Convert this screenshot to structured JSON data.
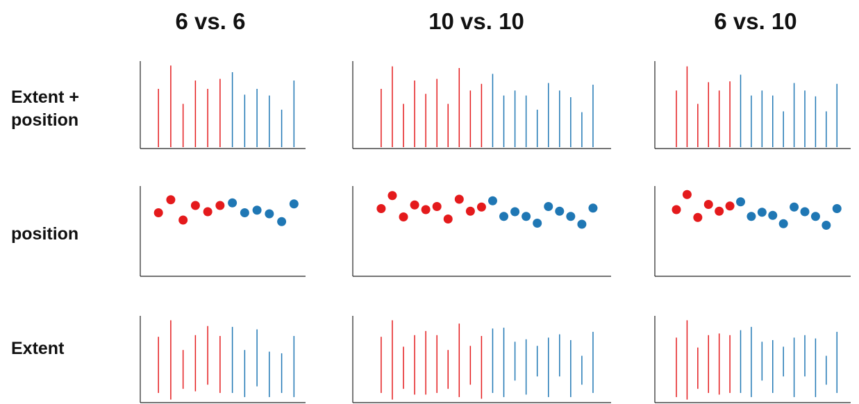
{
  "column_titles": [
    "6 vs. 6",
    "10 vs. 10",
    "6 vs. 10"
  ],
  "row_labels": {
    "extent_position": [
      "Extent +",
      "position"
    ],
    "position": "position",
    "extent": "Extent"
  },
  "colors": {
    "red": "#e41a1c",
    "blue": "#1f77b4",
    "axis": "#222222"
  },
  "chart_data": [
    {
      "type": "bar",
      "row": "extent_position",
      "column": "6 vs. 6",
      "series": [
        {
          "color": "red",
          "values": [
            0.7,
            0.98,
            0.52,
            0.8,
            0.7,
            0.82
          ]
        },
        {
          "color": "blue",
          "values": [
            0.9,
            0.63,
            0.7,
            0.62,
            0.45,
            0.8
          ]
        }
      ]
    },
    {
      "type": "bar",
      "row": "extent_position",
      "column": "10 vs. 10",
      "series": [
        {
          "color": "red",
          "values": [
            0.7,
            0.97,
            0.52,
            0.8,
            0.64,
            0.82,
            0.52,
            0.95,
            0.68,
            0.76
          ]
        },
        {
          "color": "blue",
          "values": [
            0.88,
            0.62,
            0.68,
            0.62,
            0.45,
            0.77,
            0.68,
            0.6,
            0.42,
            0.75
          ]
        }
      ]
    },
    {
      "type": "bar",
      "row": "extent_position",
      "column": "6 vs. 10",
      "series": [
        {
          "color": "red",
          "values": [
            0.68,
            0.97,
            0.52,
            0.78,
            0.68,
            0.79
          ]
        },
        {
          "color": "blue",
          "values": [
            0.87,
            0.62,
            0.68,
            0.62,
            0.43,
            0.77,
            0.68,
            0.61,
            0.43,
            0.76
          ]
        }
      ]
    },
    {
      "type": "scatter",
      "row": "position",
      "column": "6 vs. 6",
      "series": [
        {
          "color": "red",
          "values": [
            0.62,
            0.87,
            0.48,
            0.76,
            0.64,
            0.76
          ]
        },
        {
          "color": "blue",
          "values": [
            0.81,
            0.62,
            0.67,
            0.6,
            0.45,
            0.79
          ]
        }
      ]
    },
    {
      "type": "scatter",
      "row": "position",
      "column": "10 vs. 10",
      "series": [
        {
          "color": "red",
          "values": [
            0.7,
            0.95,
            0.54,
            0.77,
            0.68,
            0.74,
            0.5,
            0.88,
            0.65,
            0.73
          ]
        },
        {
          "color": "blue",
          "values": [
            0.85,
            0.55,
            0.64,
            0.55,
            0.42,
            0.74,
            0.65,
            0.55,
            0.4,
            0.71
          ]
        }
      ]
    },
    {
      "type": "scatter",
      "row": "position",
      "column": "6 vs. 10",
      "series": [
        {
          "color": "red",
          "values": [
            0.68,
            0.97,
            0.53,
            0.78,
            0.65,
            0.75
          ]
        },
        {
          "color": "blue",
          "values": [
            0.83,
            0.55,
            0.63,
            0.57,
            0.41,
            0.73,
            0.64,
            0.55,
            0.38,
            0.7
          ]
        }
      ]
    },
    {
      "type": "floating_bar",
      "row": "extent",
      "column": "6 vs. 6",
      "series": [
        {
          "color": "red",
          "ranges": [
            [
              0.1,
              0.78
            ],
            [
              0.02,
              0.98
            ],
            [
              0.15,
              0.62
            ],
            [
              0.12,
              0.8
            ],
            [
              0.2,
              0.91
            ],
            [
              0.1,
              0.79
            ]
          ]
        },
        {
          "color": "blue",
          "ranges": [
            [
              0.1,
              0.9
            ],
            [
              0.05,
              0.62
            ],
            [
              0.18,
              0.87
            ],
            [
              0.05,
              0.6
            ],
            [
              0.1,
              0.58
            ],
            [
              0.05,
              0.79
            ]
          ]
        }
      ]
    },
    {
      "type": "floating_bar",
      "row": "extent",
      "column": "10 vs. 10",
      "series": [
        {
          "color": "red",
          "ranges": [
            [
              0.1,
              0.78
            ],
            [
              0.02,
              0.98
            ],
            [
              0.15,
              0.66
            ],
            [
              0.08,
              0.8
            ],
            [
              0.08,
              0.85
            ],
            [
              0.1,
              0.8
            ],
            [
              0.15,
              0.62
            ],
            [
              0.05,
              0.94
            ],
            [
              0.2,
              0.67
            ],
            [
              0.03,
              0.79
            ]
          ]
        },
        {
          "color": "blue",
          "ranges": [
            [
              0.1,
              0.88
            ],
            [
              0.05,
              0.89
            ],
            [
              0.25,
              0.72
            ],
            [
              0.08,
              0.75
            ],
            [
              0.3,
              0.67
            ],
            [
              0.05,
              0.77
            ],
            [
              0.3,
              0.81
            ],
            [
              0.05,
              0.74
            ],
            [
              0.2,
              0.55
            ],
            [
              0.1,
              0.84
            ]
          ]
        }
      ]
    },
    {
      "type": "floating_bar",
      "row": "extent",
      "column": "6 vs. 10",
      "series": [
        {
          "color": "red",
          "ranges": [
            [
              0.05,
              0.77
            ],
            [
              0.02,
              0.98
            ],
            [
              0.15,
              0.65
            ],
            [
              0.1,
              0.8
            ],
            [
              0.08,
              0.82
            ],
            [
              0.1,
              0.8
            ]
          ]
        },
        {
          "color": "blue",
          "ranges": [
            [
              0.1,
              0.86
            ],
            [
              0.05,
              0.9
            ],
            [
              0.25,
              0.72
            ],
            [
              0.1,
              0.74
            ],
            [
              0.3,
              0.66
            ],
            [
              0.05,
              0.77
            ],
            [
              0.3,
              0.8
            ],
            [
              0.05,
              0.76
            ],
            [
              0.2,
              0.55
            ],
            [
              0.1,
              0.84
            ]
          ]
        }
      ]
    }
  ]
}
